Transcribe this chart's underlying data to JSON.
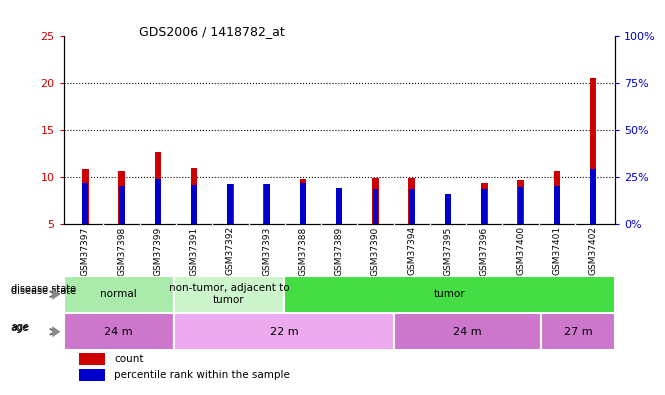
{
  "title": "GDS2006 / 1418782_at",
  "samples": [
    "GSM37397",
    "GSM37398",
    "GSM37399",
    "GSM37391",
    "GSM37392",
    "GSM37393",
    "GSM37388",
    "GSM37389",
    "GSM37390",
    "GSM37394",
    "GSM37395",
    "GSM37396",
    "GSM37400",
    "GSM37401",
    "GSM37402"
  ],
  "count_values": [
    10.8,
    10.6,
    12.7,
    10.9,
    9.2,
    9.2,
    9.8,
    8.8,
    9.9,
    9.9,
    7.1,
    9.3,
    9.7,
    10.6,
    20.5
  ],
  "percentile_values": [
    9.3,
    9.0,
    9.8,
    9.1,
    9.2,
    9.2,
    9.3,
    8.8,
    8.7,
    8.7,
    8.2,
    8.7,
    8.9,
    9.0,
    10.8
  ],
  "count_color": "#cc0000",
  "percentile_color": "#0000cc",
  "ylim_left": [
    5,
    25
  ],
  "ylim_right": [
    0,
    100
  ],
  "yticks_left": [
    5,
    10,
    15,
    20,
    25
  ],
  "yticks_right": [
    0,
    25,
    50,
    75,
    100
  ],
  "ytick_labels_right": [
    "0%",
    "25%",
    "50%",
    "75%",
    "100%"
  ],
  "grid_yticks": [
    10,
    15,
    20
  ],
  "disease_state_groups": [
    {
      "label": "normal",
      "start": 0,
      "end": 3,
      "color": "#aaeaaa"
    },
    {
      "label": "non-tumor, adjacent to\ntumor",
      "start": 3,
      "end": 6,
      "color": "#ccf5cc"
    },
    {
      "label": "tumor",
      "start": 6,
      "end": 15,
      "color": "#44dd44"
    }
  ],
  "age_groups": [
    {
      "label": "24 m",
      "start": 0,
      "end": 3,
      "color": "#cc77cc"
    },
    {
      "label": "22 m",
      "start": 3,
      "end": 9,
      "color": "#eeaaee"
    },
    {
      "label": "24 m",
      "start": 9,
      "end": 13,
      "color": "#cc77cc"
    },
    {
      "label": "27 m",
      "start": 13,
      "end": 15,
      "color": "#cc77cc"
    }
  ],
  "disease_label": "disease state",
  "age_label": "age",
  "legend_count": "count",
  "legend_percentile": "percentile rank within the sample",
  "tick_label_color_left": "#cc0000",
  "tick_label_color_right": "#0000cc",
  "xtick_bg_color": "#cccccc",
  "background_color": "#ffffff"
}
